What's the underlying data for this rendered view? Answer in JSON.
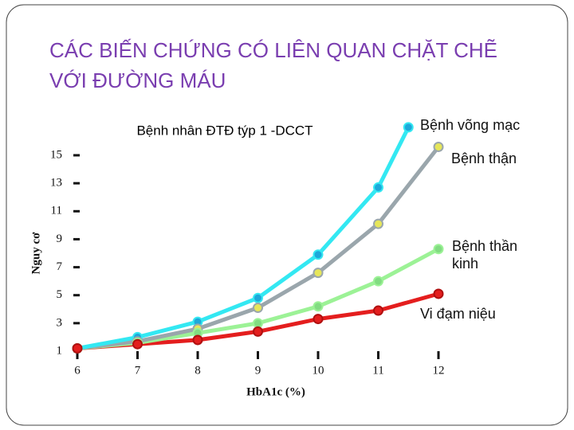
{
  "title": "CÁC BIẾN CHỨNG CÓ LIÊN QUAN CHẶT CHẼ VỚI ĐƯỜNG MÁU",
  "chart_data": {
    "type": "line",
    "subtitle": "Bệnh nhân ĐTĐ týp 1 -DCCT",
    "xlabel": "HbA1c (%)",
    "ylabel": "Nguy cơ",
    "xlim": [
      6,
      12
    ],
    "xticks": [
      6,
      7,
      8,
      9,
      10,
      11,
      12
    ],
    "ylim": [
      1,
      15
    ],
    "yticks": [
      1,
      3,
      5,
      7,
      9,
      11,
      13,
      15
    ],
    "series": [
      {
        "name": "Bệnh võng mạc",
        "color": "#33e8f2",
        "marker": "#1ea8da",
        "x": [
          6,
          7,
          8,
          9,
          10,
          11,
          11.5
        ],
        "values": [
          1.2,
          2.0,
          3.1,
          4.8,
          7.9,
          12.7,
          17.0
        ]
      },
      {
        "name": "Bệnh thận",
        "color": "#9aa6ac",
        "marker": "#e6e65a",
        "x": [
          6,
          7,
          8,
          9,
          10,
          11,
          12
        ],
        "values": [
          1.2,
          1.7,
          2.6,
          4.1,
          6.6,
          10.1,
          15.6
        ]
      },
      {
        "name": "Bệnh thần kinh",
        "color": "#9cf296",
        "marker": "#82dc82",
        "x": [
          6,
          7,
          8,
          9,
          10,
          11,
          12
        ],
        "values": [
          1.2,
          1.6,
          2.3,
          3.0,
          4.2,
          6.0,
          8.3
        ]
      },
      {
        "name": "Vi đạm niệu",
        "color": "#e41e1e",
        "marker": "#e41e1e",
        "x": [
          6,
          7,
          8,
          9,
          10,
          11,
          12
        ],
        "values": [
          1.2,
          1.5,
          1.8,
          2.4,
          3.3,
          3.9,
          5.1
        ]
      }
    ]
  }
}
